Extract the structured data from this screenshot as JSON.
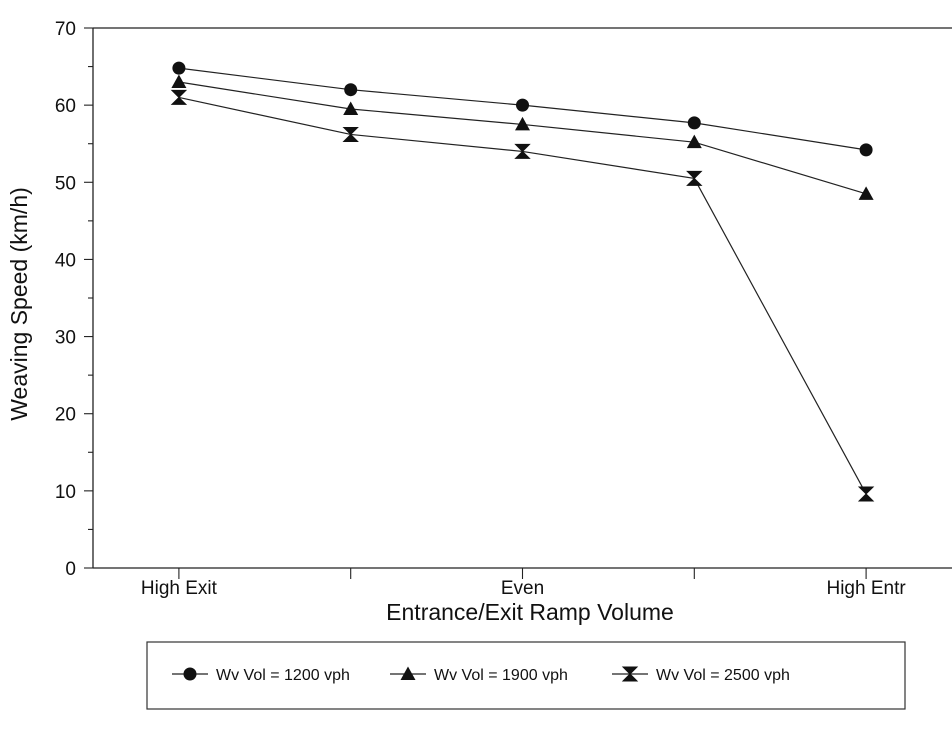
{
  "chart_data": {
    "type": "line",
    "title": "",
    "xlabel": "Entrance/Exit Ramp Volume",
    "ylabel": "Weaving Speed (km/h)",
    "x_positions": [
      1,
      2,
      3,
      4,
      5
    ],
    "x_tick_labels": [
      {
        "x": 1,
        "label": "High Exit"
      },
      {
        "x": 3,
        "label": "Even"
      },
      {
        "x": 5,
        "label": "High Entr"
      }
    ],
    "xlim": [
      0.5,
      5.5
    ],
    "ylim": [
      0,
      70
    ],
    "y_ticks": [
      0,
      10,
      20,
      30,
      40,
      50,
      60,
      70
    ],
    "y_minor_step": 5,
    "grid": false,
    "legend_position": "bottom",
    "series": [
      {
        "name": "Wv Vol = 1200 vph",
        "marker": "circle",
        "values": [
          64.8,
          62.0,
          60.0,
          57.7,
          54.2
        ]
      },
      {
        "name": "Wv Vol = 1900 vph",
        "marker": "triangle",
        "values": [
          63.0,
          59.5,
          57.5,
          55.2,
          48.5
        ]
      },
      {
        "name": "Wv Vol = 2500 vph",
        "marker": "bowtie",
        "values": [
          61.0,
          56.2,
          54.0,
          50.5,
          9.6
        ]
      }
    ]
  }
}
